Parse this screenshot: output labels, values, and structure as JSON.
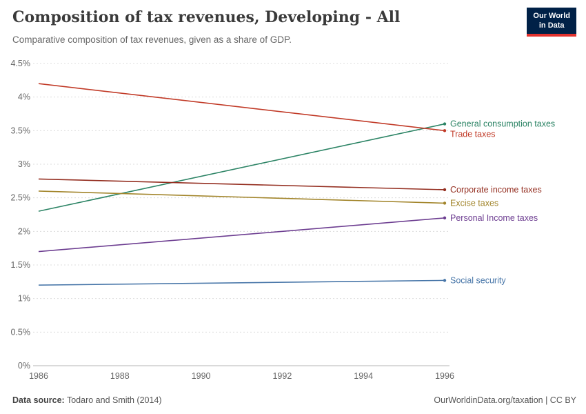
{
  "header": {
    "title": "Composition of tax revenues, Developing - All",
    "subtitle": "Comparative composition of tax revenues, given as a share of GDP.",
    "logo": {
      "line1": "Our World",
      "line2": "in Data",
      "bg": "#002147",
      "accent": "#e2322e"
    }
  },
  "footer": {
    "source_label": "Data source:",
    "source_value": "Todaro and Smith (2014)",
    "right": "OurWorldinData.org/taxation | CC BY"
  },
  "chart_data": {
    "type": "line",
    "title": "Composition of tax revenues, Developing - All",
    "subtitle": "Comparative composition of tax revenues, given as a share of GDP.",
    "x": [
      1986,
      1996
    ],
    "x_ticks": [
      1986,
      1988,
      1990,
      1992,
      1994,
      1996
    ],
    "y_ticks": [
      "0%",
      "0.5%",
      "1%",
      "1.5%",
      "2%",
      "2.5%",
      "3%",
      "3.5%",
      "4%",
      "4.5%"
    ],
    "y_tick_values": [
      0,
      0.5,
      1,
      1.5,
      2,
      2.5,
      3,
      3.5,
      4,
      4.5
    ],
    "ylim": [
      0,
      4.5
    ],
    "xlabel": "",
    "ylabel": "",
    "grid": "dashed-horizontal",
    "legend_position": "right-end-labels",
    "series": [
      {
        "name": "General consumption taxes",
        "color": "#2C8465",
        "values": [
          2.3,
          3.6
        ]
      },
      {
        "name": "Trade taxes",
        "color": "#C13A27",
        "values": [
          4.2,
          3.5
        ]
      },
      {
        "name": "Corporate income taxes",
        "color": "#942E20",
        "values": [
          2.78,
          2.62
        ]
      },
      {
        "name": "Excise taxes",
        "color": "#A2852B",
        "values": [
          2.6,
          2.42
        ]
      },
      {
        "name": "Personal Income taxes",
        "color": "#6D3E91",
        "values": [
          1.7,
          2.2
        ]
      },
      {
        "name": "Social security",
        "color": "#4977A9",
        "values": [
          1.2,
          1.27
        ]
      }
    ]
  }
}
